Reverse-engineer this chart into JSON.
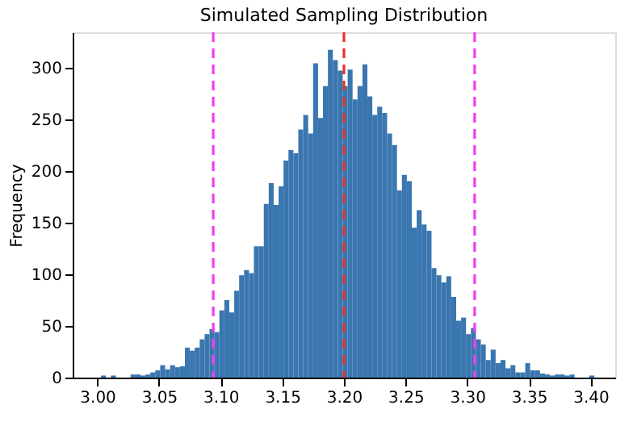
{
  "chart_data": {
    "type": "histogram",
    "title": "Simulated Sampling Distribution",
    "ylabel": "Frequency",
    "color": "#3a76af",
    "bins": [
      3.003,
      3.007,
      3.011,
      3.015,
      3.027,
      3.031,
      3.035,
      3.039,
      3.043,
      3.047,
      3.051,
      3.055,
      3.059,
      3.063,
      3.067,
      3.071,
      3.075,
      3.079,
      3.083,
      3.087,
      3.091,
      3.095,
      3.099,
      3.103,
      3.107,
      3.111,
      3.115,
      3.119,
      3.123,
      3.127,
      3.131,
      3.135,
      3.139,
      3.143,
      3.147,
      3.151,
      3.155,
      3.159,
      3.163,
      3.167,
      3.171,
      3.175,
      3.179,
      3.183,
      3.187,
      3.191,
      3.195,
      3.199,
      3.203,
      3.207,
      3.211,
      3.215,
      3.219,
      3.223,
      3.227,
      3.231,
      3.235,
      3.239,
      3.243,
      3.247,
      3.251,
      3.255,
      3.259,
      3.263,
      3.267,
      3.271,
      3.275,
      3.279,
      3.283,
      3.287,
      3.291,
      3.295,
      3.299,
      3.303,
      3.307,
      3.311,
      3.315,
      3.319,
      3.323,
      3.327,
      3.331,
      3.335,
      3.339,
      3.343,
      3.347,
      3.351,
      3.355,
      3.359,
      3.363,
      3.367,
      3.371,
      3.375,
      3.379,
      3.383,
      3.387,
      3.399,
      3.403
    ],
    "values": [
      2,
      0,
      2,
      0,
      3,
      3,
      2,
      3,
      5,
      7,
      12,
      8,
      12,
      10,
      11,
      29,
      26,
      29,
      37,
      42,
      47,
      44,
      65,
      75,
      63,
      84,
      99,
      104,
      101,
      127,
      127,
      168,
      188,
      167,
      185,
      210,
      220,
      217,
      240,
      254,
      236,
      304,
      251,
      282,
      317,
      307,
      297,
      282,
      298,
      269,
      282,
      303,
      272,
      254,
      262,
      256,
      236,
      225,
      181,
      196,
      190,
      145,
      162,
      148,
      142,
      106,
      99,
      92,
      98,
      78,
      55,
      58,
      42,
      48,
      37,
      32,
      17,
      27,
      14,
      17,
      9,
      12,
      5,
      5,
      14,
      7,
      7,
      4,
      3,
      2,
      3,
      3,
      2,
      3,
      0,
      2
    ],
    "xlim": [
      2.98,
      3.42
    ],
    "xticks": [
      {
        "value": 3.0,
        "label": "3.00"
      },
      {
        "value": 3.05,
        "label": "3.05"
      },
      {
        "value": 3.1,
        "label": "3.10"
      },
      {
        "value": 3.15,
        "label": "3.15"
      },
      {
        "value": 3.2,
        "label": "3.20"
      },
      {
        "value": 3.25,
        "label": "3.25"
      },
      {
        "value": 3.3,
        "label": "3.30"
      },
      {
        "value": 3.35,
        "label": "3.35"
      },
      {
        "value": 3.4,
        "label": "3.40"
      }
    ],
    "ylim": [
      0,
      334
    ],
    "yticks": [
      0,
      50,
      100,
      150,
      200,
      250,
      300
    ],
    "grid": false,
    "ref_lines": [
      {
        "axis": "x",
        "value": 3.094,
        "color": "#ee3ef0",
        "line_style": "dashed"
      },
      {
        "axis": "x",
        "value": 3.2,
        "color": "#e3322a",
        "line_style": "dashed"
      },
      {
        "axis": "x",
        "value": 3.306,
        "color": "#ee3ef0",
        "line_style": "dashed"
      }
    ]
  }
}
